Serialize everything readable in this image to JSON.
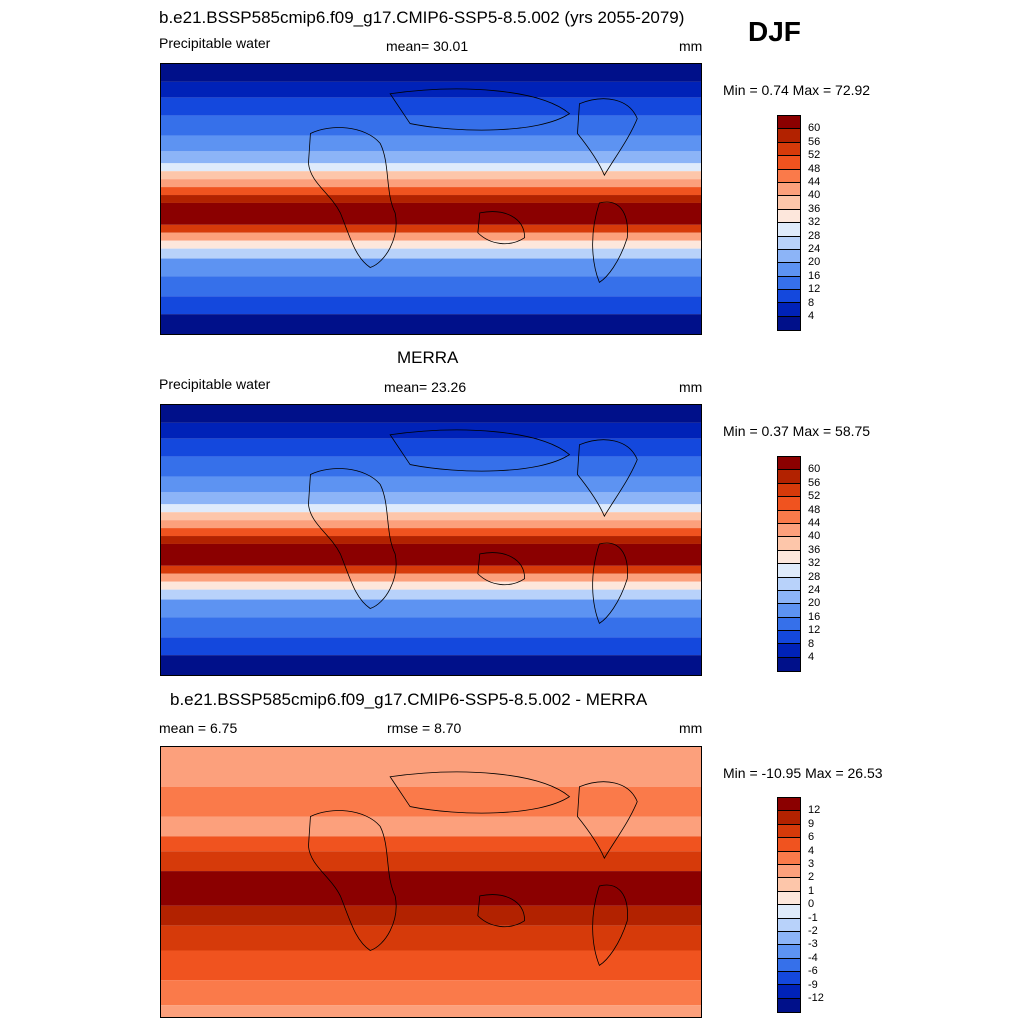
{
  "season": "DJF",
  "panels": [
    {
      "title": "b.e21.BSSP585cmip6.f09_g17.CMIP6-SSP5-8.5.002 (yrs 2055-2079)",
      "left_label": "Precipitable water",
      "center_label": "mean=  30.01",
      "units": "mm",
      "minmax": "Min =   0.74 Max =  72.92",
      "levels": [
        "60",
        "56",
        "52",
        "48",
        "44",
        "40",
        "36",
        "32",
        "28",
        "24",
        "20",
        "16",
        "12",
        "8",
        "4"
      ],
      "colors": [
        "#8b0000",
        "#b22200",
        "#d63a0a",
        "#f0531f",
        "#fa7a4a",
        "#fca07c",
        "#fdc6aa",
        "#fde7dc",
        "#dfebfb",
        "#b8d2fa",
        "#8cb4f7",
        "#5d93f2",
        "#3670ea",
        "#1448dd",
        "#0022b8",
        "#00108a"
      ]
    },
    {
      "title": "MERRA",
      "left_label": "Precipitable water",
      "center_label": "mean=  23.26",
      "units": "mm",
      "minmax": "Min =   0.37 Max =  58.75",
      "levels": [
        "60",
        "56",
        "52",
        "48",
        "44",
        "40",
        "36",
        "32",
        "28",
        "24",
        "20",
        "16",
        "12",
        "8",
        "4"
      ],
      "colors": [
        "#8b0000",
        "#b22200",
        "#d63a0a",
        "#f0531f",
        "#fa7a4a",
        "#fca07c",
        "#fdc6aa",
        "#fde7dc",
        "#dfebfb",
        "#b8d2fa",
        "#8cb4f7",
        "#5d93f2",
        "#3670ea",
        "#1448dd",
        "#0022b8",
        "#00108a"
      ]
    },
    {
      "title": "b.e21.BSSP585cmip6.f09_g17.CMIP6-SSP5-8.5.002 - MERRA",
      "left_label": "mean =   6.75",
      "center_label": "rmse =   8.70",
      "units": "mm",
      "minmax": "Min = -10.95 Max =  26.53",
      "levels": [
        "12",
        "9",
        "6",
        "4",
        "3",
        "2",
        "1",
        "0",
        "-1",
        "-2",
        "-3",
        "-4",
        "-6",
        "-9",
        "-12"
      ],
      "colors": [
        "#8b0000",
        "#b22200",
        "#d63a0a",
        "#f0531f",
        "#fa7a4a",
        "#fca07c",
        "#fdc6aa",
        "#fde7dc",
        "#dfebfb",
        "#b8d2fa",
        "#8cb4f7",
        "#5d93f2",
        "#3670ea",
        "#1448dd",
        "#0022b8",
        "#00108a"
      ]
    }
  ]
}
